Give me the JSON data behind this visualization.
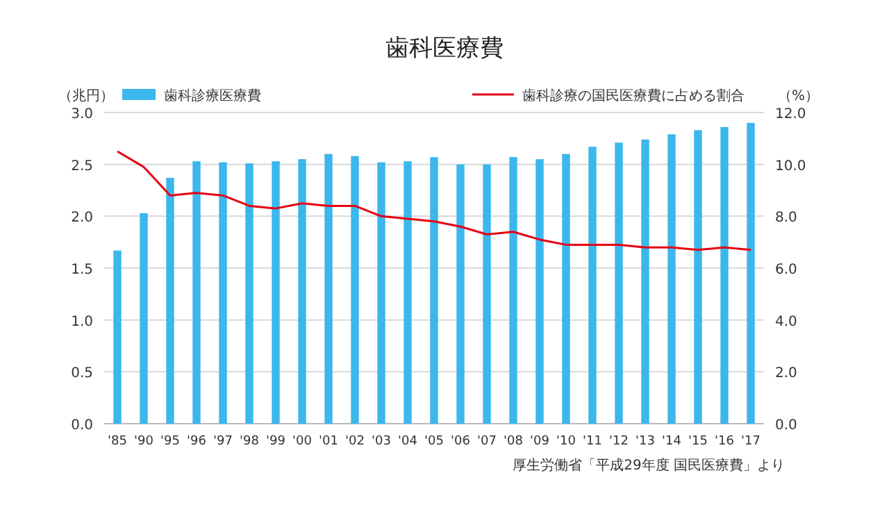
{
  "chart_data": {
    "type": "bar",
    "title": "歯科医療費",
    "ylabel": "（兆円）",
    "y2label": "（%）",
    "categories": [
      "'85",
      "'90",
      "'95",
      "'96",
      "'97",
      "'98",
      "'99",
      "'00",
      "'01",
      "'02",
      "'03",
      "'04",
      "'05",
      "'06",
      "'07",
      "'08",
      "'09",
      "'10",
      "'11",
      "'12",
      "'13",
      "'14",
      "'15",
      "'16",
      "'17"
    ],
    "series": [
      {
        "name": "歯科診療医療費",
        "color": "#3bb7ec",
        "values": [
          1.67,
          2.03,
          2.37,
          2.53,
          2.52,
          2.51,
          2.53,
          2.55,
          2.6,
          2.58,
          2.52,
          2.53,
          2.57,
          2.5,
          2.5,
          2.57,
          2.55,
          2.6,
          2.67,
          2.71,
          2.74,
          2.79,
          2.83,
          2.86,
          2.9
        ]
      },
      {
        "name": "歯科診療の国民医療費に占める割合",
        "type": "line",
        "axis": "y2",
        "color": "#e60012",
        "values": [
          10.5,
          9.9,
          8.8,
          8.9,
          8.8,
          8.4,
          8.3,
          8.5,
          8.4,
          8.4,
          8.0,
          7.9,
          7.8,
          7.6,
          7.3,
          7.4,
          7.1,
          6.9,
          6.9,
          6.9,
          6.8,
          6.8,
          6.7,
          6.8,
          6.7
        ]
      }
    ],
    "ylim": [
      0,
      3
    ],
    "yticks": [
      {
        "value": 0,
        "label": "0.0"
      },
      {
        "value": 0.5,
        "label": "0.5"
      },
      {
        "value": 1,
        "label": "1.0"
      },
      {
        "value": 1.5,
        "label": "1.5"
      },
      {
        "value": 2,
        "label": "2.0"
      },
      {
        "value": 2.5,
        "label": "2.5"
      },
      {
        "value": 3,
        "label": "3.0"
      }
    ],
    "y2lim": [
      0,
      12
    ],
    "y2ticks": [
      {
        "value": 0,
        "label": "0.0"
      },
      {
        "value": 2,
        "label": "2.0"
      },
      {
        "value": 4,
        "label": "4.0"
      },
      {
        "value": 6,
        "label": "6.0"
      },
      {
        "value": 8,
        "label": "8.0"
      },
      {
        "value": 10,
        "label": "10.0"
      },
      {
        "value": 12,
        "label": "12.0"
      }
    ],
    "grid": "y",
    "legend": "top",
    "marker": "none",
    "line_style": "solid",
    "annotations": [
      "厚生労働省「平成29年度 国民医療費」より"
    ]
  }
}
